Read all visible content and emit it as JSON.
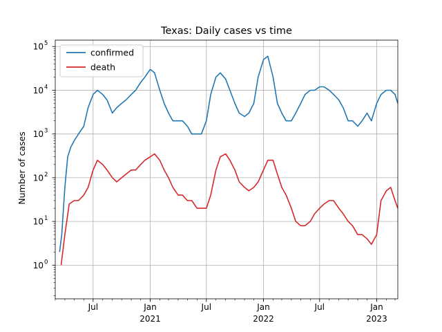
{
  "chart_data": {
    "type": "line",
    "title": "Texas: Daily  cases vs time",
    "xlabel": "",
    "ylabel": "Number of cases",
    "yscale": "log",
    "ylim": [
      0.17,
      140000
    ],
    "xlim": [
      "2020-03-01",
      "2023-03-10"
    ],
    "grid": true,
    "legend_position": "top-left",
    "x_ticks": [
      {
        "date": "2020-07-01",
        "label": "Jul",
        "sublabel": ""
      },
      {
        "date": "2021-01-01",
        "label": "Jan",
        "sublabel": "2021"
      },
      {
        "date": "2021-07-01",
        "label": "Jul",
        "sublabel": ""
      },
      {
        "date": "2022-01-01",
        "label": "Jan",
        "sublabel": "2022"
      },
      {
        "date": "2022-07-01",
        "label": "Jul",
        "sublabel": ""
      },
      {
        "date": "2023-01-01",
        "label": "Jan",
        "sublabel": "2023"
      }
    ],
    "y_ticks": [
      {
        "value": 1,
        "exp": "0"
      },
      {
        "value": 10,
        "exp": "1"
      },
      {
        "value": 100,
        "exp": "2"
      },
      {
        "value": 1000,
        "exp": "3"
      },
      {
        "value": 10000,
        "exp": "4"
      },
      {
        "value": 100000,
        "exp": "5"
      }
    ],
    "y_tick_base": "10",
    "series": [
      {
        "name": "confirmed",
        "color": "#1f77b4",
        "x": [
          "2020-03-15",
          "2020-03-22",
          "2020-04-01",
          "2020-04-10",
          "2020-04-20",
          "2020-05-01",
          "2020-05-15",
          "2020-06-01",
          "2020-06-15",
          "2020-07-01",
          "2020-07-15",
          "2020-08-01",
          "2020-08-15",
          "2020-09-01",
          "2020-09-15",
          "2020-10-01",
          "2020-10-15",
          "2020-11-01",
          "2020-11-15",
          "2020-12-01",
          "2020-12-15",
          "2021-01-01",
          "2021-01-15",
          "2021-02-01",
          "2021-02-15",
          "2021-03-01",
          "2021-03-15",
          "2021-04-01",
          "2021-04-15",
          "2021-05-01",
          "2021-05-15",
          "2021-06-01",
          "2021-06-15",
          "2021-07-01",
          "2021-07-15",
          "2021-08-01",
          "2021-08-15",
          "2021-09-01",
          "2021-09-15",
          "2021-10-01",
          "2021-10-15",
          "2021-11-01",
          "2021-11-15",
          "2021-12-01",
          "2021-12-15",
          "2022-01-01",
          "2022-01-15",
          "2022-02-01",
          "2022-02-15",
          "2022-03-01",
          "2022-03-15",
          "2022-04-01",
          "2022-04-15",
          "2022-05-01",
          "2022-05-15",
          "2022-06-01",
          "2022-06-15",
          "2022-07-01",
          "2022-07-15",
          "2022-08-01",
          "2022-08-15",
          "2022-09-01",
          "2022-09-15",
          "2022-10-01",
          "2022-10-15",
          "2022-11-01",
          "2022-11-15",
          "2022-12-01",
          "2022-12-15",
          "2023-01-01",
          "2023-01-15",
          "2023-02-01",
          "2023-02-15",
          "2023-03-01",
          "2023-03-10"
        ],
        "values": [
          2,
          5,
          60,
          300,
          500,
          700,
          1000,
          1500,
          4000,
          8000,
          10000,
          8000,
          6000,
          3000,
          4000,
          5000,
          6000,
          8000,
          10000,
          15000,
          20000,
          30000,
          25000,
          10000,
          5000,
          3000,
          2000,
          2000,
          2000,
          1500,
          1000,
          1000,
          1000,
          2000,
          8000,
          20000,
          25000,
          18000,
          10000,
          5000,
          3000,
          2500,
          3000,
          5000,
          20000,
          50000,
          60000,
          20000,
          5000,
          3000,
          2000,
          2000,
          3000,
          5000,
          8000,
          10000,
          10000,
          12000,
          12000,
          10000,
          8000,
          6000,
          4000,
          2000,
          2000,
          1500,
          2000,
          3000,
          2000,
          5000,
          8000,
          10000,
          10000,
          8000,
          5000
        ]
      },
      {
        "name": "death",
        "color": "#d62728",
        "x": [
          "2020-03-20",
          "2020-04-01",
          "2020-04-15",
          "2020-05-01",
          "2020-05-15",
          "2020-06-01",
          "2020-06-15",
          "2020-07-01",
          "2020-07-15",
          "2020-08-01",
          "2020-08-15",
          "2020-09-01",
          "2020-09-15",
          "2020-10-01",
          "2020-10-15",
          "2020-11-01",
          "2020-11-15",
          "2020-12-01",
          "2020-12-15",
          "2021-01-01",
          "2021-01-15",
          "2021-02-01",
          "2021-02-15",
          "2021-03-01",
          "2021-03-15",
          "2021-04-01",
          "2021-04-15",
          "2021-05-01",
          "2021-05-15",
          "2021-06-01",
          "2021-06-15",
          "2021-07-01",
          "2021-07-15",
          "2021-08-01",
          "2021-08-15",
          "2021-09-01",
          "2021-09-15",
          "2021-10-01",
          "2021-10-15",
          "2021-11-01",
          "2021-11-15",
          "2021-12-01",
          "2021-12-15",
          "2022-01-01",
          "2022-01-15",
          "2022-02-01",
          "2022-02-15",
          "2022-03-01",
          "2022-03-15",
          "2022-04-01",
          "2022-04-15",
          "2022-05-01",
          "2022-05-15",
          "2022-06-01",
          "2022-06-15",
          "2022-07-01",
          "2022-07-15",
          "2022-08-01",
          "2022-08-15",
          "2022-09-01",
          "2022-09-15",
          "2022-10-01",
          "2022-10-15",
          "2022-11-01",
          "2022-11-15",
          "2022-12-01",
          "2022-12-15",
          "2023-01-01",
          "2023-01-15",
          "2023-02-01",
          "2023-02-15",
          "2023-03-01",
          "2023-03-10"
        ],
        "values": [
          1,
          5,
          25,
          30,
          30,
          40,
          60,
          150,
          250,
          200,
          150,
          100,
          80,
          100,
          120,
          150,
          150,
          200,
          250,
          300,
          350,
          250,
          150,
          100,
          60,
          40,
          40,
          30,
          30,
          20,
          20,
          20,
          40,
          150,
          300,
          350,
          250,
          150,
          80,
          60,
          50,
          60,
          80,
          150,
          250,
          250,
          120,
          60,
          40,
          20,
          10,
          8,
          8,
          10,
          15,
          20,
          25,
          30,
          30,
          20,
          15,
          10,
          8,
          5,
          5,
          4,
          3,
          5,
          30,
          50,
          60,
          30,
          20
        ]
      }
    ]
  }
}
